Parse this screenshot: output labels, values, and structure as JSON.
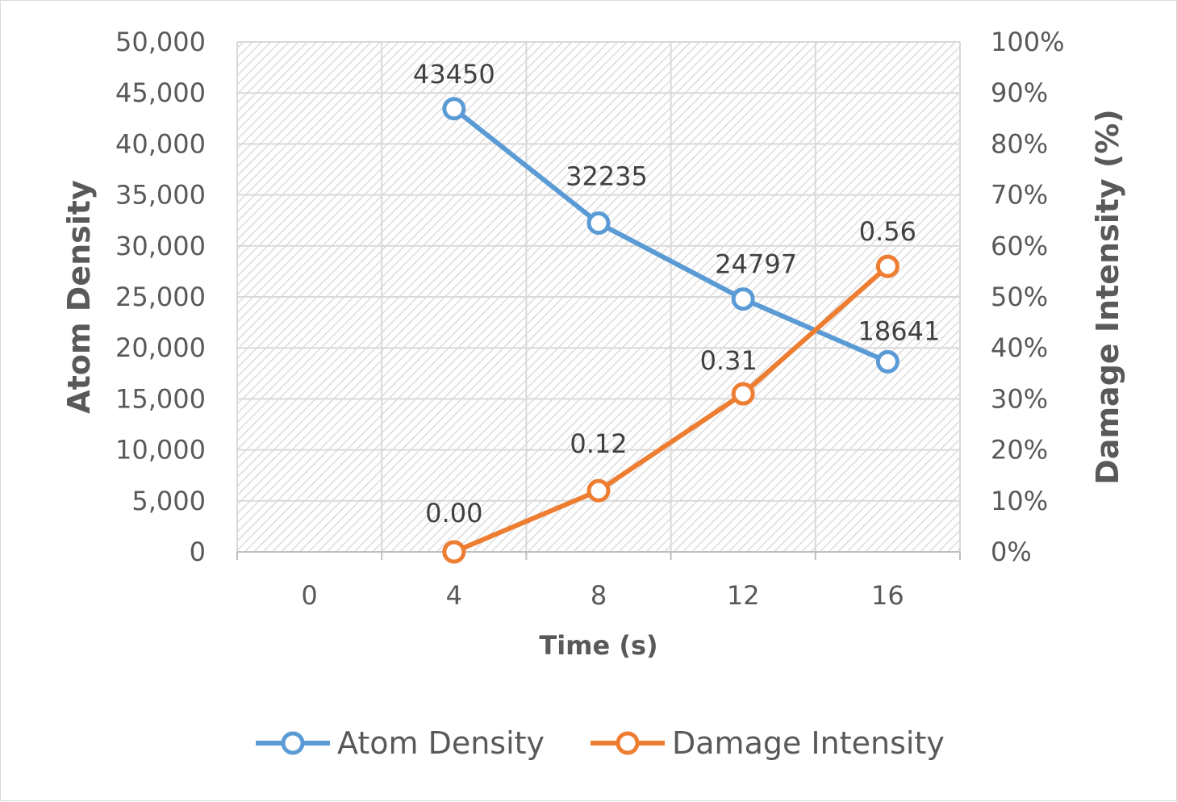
{
  "chart_data": {
    "type": "line",
    "xlabel": "Time (s)",
    "ylabel_left": "Atom Density",
    "ylabel_right": "Damage Intensity (%)",
    "x_ticks": [
      0,
      4,
      8,
      12,
      16
    ],
    "xlim": [
      -2,
      18
    ],
    "y_left_ticks": [
      "0",
      "5,000",
      "10,000",
      "15,000",
      "20,000",
      "25,000",
      "30,000",
      "35,000",
      "40,000",
      "45,000",
      "50,000"
    ],
    "y_left_range": [
      0,
      50000
    ],
    "y_right_ticks": [
      "0%",
      "10%",
      "20%",
      "30%",
      "40%",
      "50%",
      "60%",
      "70%",
      "80%",
      "90%",
      "100%"
    ],
    "y_right_range": [
      0,
      1
    ],
    "grid": true,
    "legend_position": "bottom",
    "series": [
      {
        "name": "Atom Density",
        "axis": "left",
        "color": "#5b9bd5",
        "x": [
          4,
          8,
          12,
          16
        ],
        "y": [
          43450,
          32235,
          24797,
          18641
        ],
        "labels": [
          "43450",
          "32235",
          "24797",
          "18641"
        ]
      },
      {
        "name": "Damage Intensity",
        "axis": "right",
        "color": "#ed7d31",
        "x": [
          4,
          8,
          12,
          16
        ],
        "y": [
          0.0,
          0.12,
          0.31,
          0.56
        ],
        "labels": [
          "0.00",
          "0.12",
          "0.31",
          "0.56"
        ]
      }
    ]
  }
}
